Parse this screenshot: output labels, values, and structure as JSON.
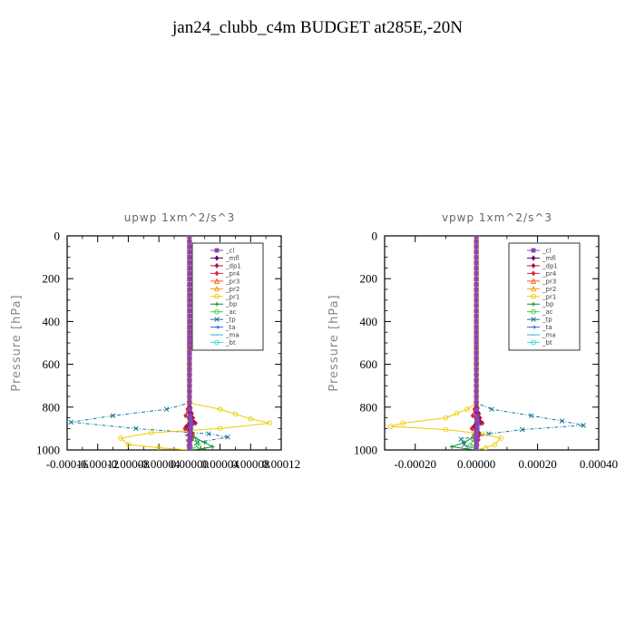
{
  "title": "jan24_clubb_c4m  BUDGET at285E,-20N",
  "chart_data": [
    {
      "type": "line",
      "title": "upwp   1xm^2/s^3",
      "ylabel": "Pressure  [hPa]",
      "xlim": [
        -0.00016,
        0.00012
      ],
      "ylim": [
        1000,
        0
      ],
      "xticks": [
        -0.00016,
        -0.00012,
        -8e-05,
        -4e-05,
        0.0,
        4e-05,
        8e-05,
        0.00012
      ],
      "xticklabels": [
        "-0.00016",
        "-0.00012",
        "-0.00008",
        "-0.00004",
        "0.00000",
        "0.00004",
        "0.00008",
        "0.00012"
      ],
      "yticks": [
        0,
        200,
        400,
        600,
        800,
        1000
      ],
      "yticklabels": [
        "0",
        "200",
        "400",
        "600",
        "800",
        "1000"
      ],
      "legend_position": "top-right",
      "series": [
        {
          "name": "_cl",
          "color": "#8844bb",
          "marker": "square",
          "values": [
            [
              0,
              0
            ],
            [
              0,
              200
            ],
            [
              0,
              400
            ],
            [
              0,
              600
            ],
            [
              0,
              780
            ],
            [
              1e-06,
              840
            ],
            [
              2e-06,
              880
            ],
            [
              1e-06,
              920
            ],
            [
              0,
              960
            ],
            [
              0,
              1000
            ]
          ]
        },
        {
          "name": "_mfl",
          "color": "#660066",
          "marker": "diamond",
          "values": [
            [
              0,
              0
            ],
            [
              0,
              200
            ],
            [
              0,
              400
            ],
            [
              0,
              600
            ],
            [
              0,
              780
            ],
            [
              0,
              880
            ],
            [
              0,
              1000
            ]
          ]
        },
        {
          "name": "_dp1",
          "color": "#aa1144",
          "marker": "diamond",
          "values": [
            [
              0,
              0
            ],
            [
              0,
              200
            ],
            [
              0,
              400
            ],
            [
              0,
              600
            ],
            [
              0,
              780
            ],
            [
              3e-06,
              830
            ],
            [
              6e-06,
              870
            ],
            [
              -4e-06,
              890
            ],
            [
              3e-06,
              920
            ],
            [
              0,
              960
            ],
            [
              0,
              1000
            ]
          ]
        },
        {
          "name": "_pr4",
          "color": "#dd2244",
          "marker": "diamond",
          "values": [
            [
              0,
              0
            ],
            [
              0,
              400
            ],
            [
              0,
              780
            ],
            [
              -5e-06,
              840
            ],
            [
              8e-06,
              875
            ],
            [
              -6e-06,
              900
            ],
            [
              4e-06,
              930
            ],
            [
              0,
              1000
            ]
          ]
        },
        {
          "name": "_pr3",
          "color": "#ff5522",
          "marker": "triangle",
          "values": [
            [
              0,
              0
            ],
            [
              0,
              400
            ],
            [
              0,
              790
            ],
            [
              3e-06,
              860
            ],
            [
              -2e-06,
              900
            ],
            [
              0,
              1000
            ]
          ]
        },
        {
          "name": "_pr2",
          "color": "#ff9900",
          "marker": "triangle",
          "values": [
            [
              0,
              0
            ],
            [
              0,
              400
            ],
            [
              0,
              790
            ],
            [
              0,
              880
            ],
            [
              0,
              1000
            ]
          ]
        },
        {
          "name": "_pr1",
          "color": "#eecc00",
          "marker": "circle",
          "values": [
            [
              0,
              0
            ],
            [
              0,
              400
            ],
            [
              0,
              780
            ],
            [
              4e-05,
              810
            ],
            [
              8e-05,
              855
            ],
            [
              0.000105,
              875
            ],
            [
              4e-05,
              900
            ],
            [
              -5e-05,
              920
            ],
            [
              -9e-05,
              945
            ],
            [
              -8e-05,
              975
            ],
            [
              -4e-05,
              990
            ],
            [
              0,
              1000
            ]
          ]
        },
        {
          "name": "_bp",
          "color": "#118833",
          "marker": "plus",
          "values": [
            [
              0,
              0
            ],
            [
              0,
              400
            ],
            [
              0,
              900
            ],
            [
              5e-06,
              940
            ],
            [
              2e-05,
              965
            ],
            [
              3e-05,
              985
            ],
            [
              1.5e-05,
              995
            ],
            [
              0,
              1000
            ]
          ]
        },
        {
          "name": "_ac",
          "color": "#44cc44",
          "marker": "circle",
          "values": [
            [
              0,
              0
            ],
            [
              0,
              400
            ],
            [
              0,
              900
            ],
            [
              8e-06,
              950
            ],
            [
              1.2e-05,
              980
            ],
            [
              0,
              1000
            ]
          ]
        },
        {
          "name": "_tp",
          "color": "#117799",
          "marker": "cross",
          "values": [
            [
              0,
              0
            ],
            [
              0,
              400
            ],
            [
              0,
              780
            ],
            [
              -3e-05,
              810
            ],
            [
              -0.0001,
              840
            ],
            [
              -0.000155,
              870
            ],
            [
              -7e-05,
              900
            ],
            [
              2.5e-05,
              925
            ],
            [
              5e-05,
              940
            ],
            [
              1e-05,
              965
            ],
            [
              0,
              1000
            ]
          ]
        },
        {
          "name": "_ta",
          "color": "#3366dd",
          "marker": "arrow",
          "values": [
            [
              0,
              0
            ],
            [
              0,
              400
            ],
            [
              0,
              800
            ],
            [
              4e-06,
              880
            ],
            [
              -3e-06,
              930
            ],
            [
              0,
              1000
            ]
          ]
        },
        {
          "name": "_ma",
          "color": "#44aadd",
          "marker": "dash",
          "values": [
            [
              0,
              0
            ],
            [
              0,
              1000
            ]
          ]
        },
        {
          "name": "_bt",
          "color": "#33dddd",
          "marker": "circle",
          "values": [
            [
              0,
              0
            ],
            [
              0,
              400
            ],
            [
              0,
              800
            ],
            [
              2e-06,
              900
            ],
            [
              0,
              1000
            ]
          ]
        }
      ]
    },
    {
      "type": "line",
      "title": "vpwp   1xm^2/s^3",
      "ylabel": "Pressure  [hPa]",
      "xlim": [
        -0.0003,
        0.0004
      ],
      "ylim": [
        1000,
        0
      ],
      "xticks": [
        -0.0002,
        0.0,
        0.0002,
        0.0004
      ],
      "xticklabels": [
        "-0.00020",
        "0.00000",
        "0.00020",
        "0.00040"
      ],
      "yticks": [
        0,
        200,
        400,
        600,
        800,
        1000
      ],
      "yticklabels": [
        "0",
        "200",
        "400",
        "600",
        "800",
        "1000"
      ],
      "legend_position": "top-right",
      "series": [
        {
          "name": "_cl",
          "color": "#8844bb",
          "marker": "square",
          "values": [
            [
              0,
              0
            ],
            [
              0,
              200
            ],
            [
              0,
              400
            ],
            [
              0,
              600
            ],
            [
              0,
              780
            ],
            [
              2e-06,
              840
            ],
            [
              3e-06,
              880
            ],
            [
              1e-06,
              920
            ],
            [
              0,
              960
            ],
            [
              0,
              1000
            ]
          ]
        },
        {
          "name": "_mfl",
          "color": "#660066",
          "marker": "diamond",
          "values": [
            [
              0,
              0
            ],
            [
              0,
              200
            ],
            [
              0,
              400
            ],
            [
              0,
              600
            ],
            [
              0,
              780
            ],
            [
              0,
              880
            ],
            [
              0,
              1000
            ]
          ]
        },
        {
          "name": "_dp1",
          "color": "#aa1144",
          "marker": "diamond",
          "values": [
            [
              0,
              0
            ],
            [
              0,
              200
            ],
            [
              0,
              400
            ],
            [
              0,
              600
            ],
            [
              0,
              780
            ],
            [
              8e-06,
              830
            ],
            [
              1.5e-05,
              870
            ],
            [
              -8e-06,
              890
            ],
            [
              8e-06,
              920
            ],
            [
              0,
              960
            ],
            [
              0,
              1000
            ]
          ]
        },
        {
          "name": "_pr4",
          "color": "#dd2244",
          "marker": "diamond",
          "values": [
            [
              0,
              0
            ],
            [
              0,
              400
            ],
            [
              0,
              780
            ],
            [
              -1.2e-05,
              840
            ],
            [
              2e-05,
              875
            ],
            [
              -1.5e-05,
              900
            ],
            [
              1e-05,
              930
            ],
            [
              0,
              1000
            ]
          ]
        },
        {
          "name": "_pr3",
          "color": "#ff5522",
          "marker": "triangle",
          "values": [
            [
              0,
              0
            ],
            [
              0,
              400
            ],
            [
              0,
              790
            ],
            [
              8e-06,
              860
            ],
            [
              -6e-06,
              900
            ],
            [
              0,
              1000
            ]
          ]
        },
        {
          "name": "_pr2",
          "color": "#ff9900",
          "marker": "triangle",
          "values": [
            [
              0,
              0
            ],
            [
              0,
              400
            ],
            [
              0,
              790
            ],
            [
              0,
              880
            ],
            [
              0,
              1000
            ]
          ]
        },
        {
          "name": "_pr1",
          "color": "#eecc00",
          "marker": "circle",
          "values": [
            [
              0,
              0
            ],
            [
              0,
              400
            ],
            [
              0,
              780
            ],
            [
              -3e-05,
              810
            ],
            [
              -0.0001,
              850
            ],
            [
              -0.00024,
              875
            ],
            [
              -0.00028,
              890
            ],
            [
              -0.0001,
              905
            ],
            [
              2e-05,
              925
            ],
            [
              8e-05,
              945
            ],
            [
              6e-05,
              975
            ],
            [
              3e-05,
              990
            ],
            [
              0,
              1000
            ]
          ]
        },
        {
          "name": "_bp",
          "color": "#118833",
          "marker": "plus",
          "values": [
            [
              0,
              0
            ],
            [
              0,
              400
            ],
            [
              0,
              900
            ],
            [
              -1e-05,
              940
            ],
            [
              -4e-05,
              965
            ],
            [
              -8e-05,
              985
            ],
            [
              -3e-05,
              995
            ],
            [
              0,
              1000
            ]
          ]
        },
        {
          "name": "_ac",
          "color": "#44cc44",
          "marker": "circle",
          "values": [
            [
              0,
              0
            ],
            [
              0,
              400
            ],
            [
              0,
              900
            ],
            [
              -1e-05,
              950
            ],
            [
              -2e-05,
              980
            ],
            [
              0,
              1000
            ]
          ]
        },
        {
          "name": "_tp",
          "color": "#117799",
          "marker": "cross",
          "values": [
            [
              0,
              0
            ],
            [
              0,
              400
            ],
            [
              0,
              780
            ],
            [
              5e-05,
              810
            ],
            [
              0.00018,
              840
            ],
            [
              0.00028,
              865
            ],
            [
              0.00035,
              885
            ],
            [
              0.00015,
              905
            ],
            [
              4e-05,
              925
            ],
            [
              -5e-05,
              950
            ],
            [
              -4e-05,
              975
            ],
            [
              0,
              1000
            ]
          ]
        },
        {
          "name": "_ta",
          "color": "#3366dd",
          "marker": "arrow",
          "values": [
            [
              0,
              0
            ],
            [
              0,
              400
            ],
            [
              0,
              800
            ],
            [
              1e-05,
              880
            ],
            [
              -8e-06,
              930
            ],
            [
              0,
              1000
            ]
          ]
        },
        {
          "name": "_ma",
          "color": "#44aadd",
          "marker": "dash",
          "values": [
            [
              0,
              0
            ],
            [
              0,
              1000
            ]
          ]
        },
        {
          "name": "_bt",
          "color": "#33dddd",
          "marker": "circle",
          "values": [
            [
              0,
              0
            ],
            [
              0,
              400
            ],
            [
              0,
              800
            ],
            [
              4e-06,
              900
            ],
            [
              0,
              1000
            ]
          ]
        }
      ]
    }
  ]
}
